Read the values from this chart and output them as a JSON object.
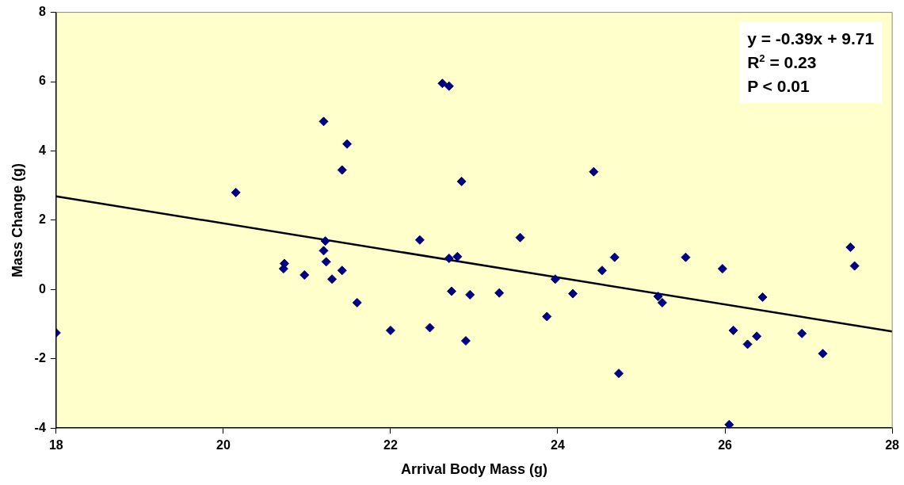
{
  "chart_data": {
    "type": "scatter",
    "xlabel": "Arrival Body Mass (g)",
    "ylabel": "Mass Change (g)",
    "xlim": [
      18,
      28
    ],
    "xticks": [
      18,
      20,
      22,
      24,
      26,
      28
    ],
    "ylim": [
      -4,
      8
    ],
    "yticks": [
      -4,
      -2,
      0,
      2,
      4,
      6,
      8
    ],
    "grid": false,
    "legend": false,
    "annotations": [
      "y = -0.39x + 9.71",
      "R$^{2}$ = 0.23",
      "P < 0.01"
    ],
    "series": [
      {
        "marker": "diamond",
        "color": "#000080",
        "x": [
          18.0,
          20.15,
          20.72,
          20.73,
          20.97,
          21.2,
          21.2,
          21.22,
          21.23,
          21.3,
          21.42,
          21.42,
          21.48,
          21.6,
          22.0,
          22.35,
          22.47,
          22.62,
          22.7,
          22.7,
          22.73,
          22.8,
          22.85,
          22.9,
          22.95,
          23.3,
          23.55,
          23.87,
          23.97,
          24.18,
          24.43,
          24.53,
          24.68,
          24.73,
          25.2,
          25.25,
          25.53,
          25.97,
          26.05,
          26.1,
          26.27,
          26.38,
          26.45,
          26.92,
          27.17,
          27.5,
          27.55
        ],
        "values": [
          -1.25,
          2.8,
          0.6,
          0.75,
          0.42,
          4.85,
          1.12,
          1.4,
          0.8,
          0.3,
          0.55,
          3.45,
          4.2,
          -0.38,
          -1.18,
          1.43,
          -1.1,
          5.95,
          5.87,
          0.9,
          -0.05,
          0.95,
          3.12,
          -1.48,
          -0.15,
          -0.1,
          1.5,
          -0.78,
          0.3,
          -0.12,
          3.4,
          0.55,
          0.93,
          -2.42,
          -0.2,
          -0.38,
          0.93,
          0.6,
          -3.9,
          -1.18,
          -1.58,
          -1.35,
          -0.22,
          -1.27,
          -1.85,
          1.22,
          0.68
        ]
      },
      {
        "type": "line",
        "marker": "none",
        "color": "#000000",
        "x": [
          18,
          28
        ],
        "values": [
          2.69,
          -1.21
        ]
      }
    ]
  }
}
